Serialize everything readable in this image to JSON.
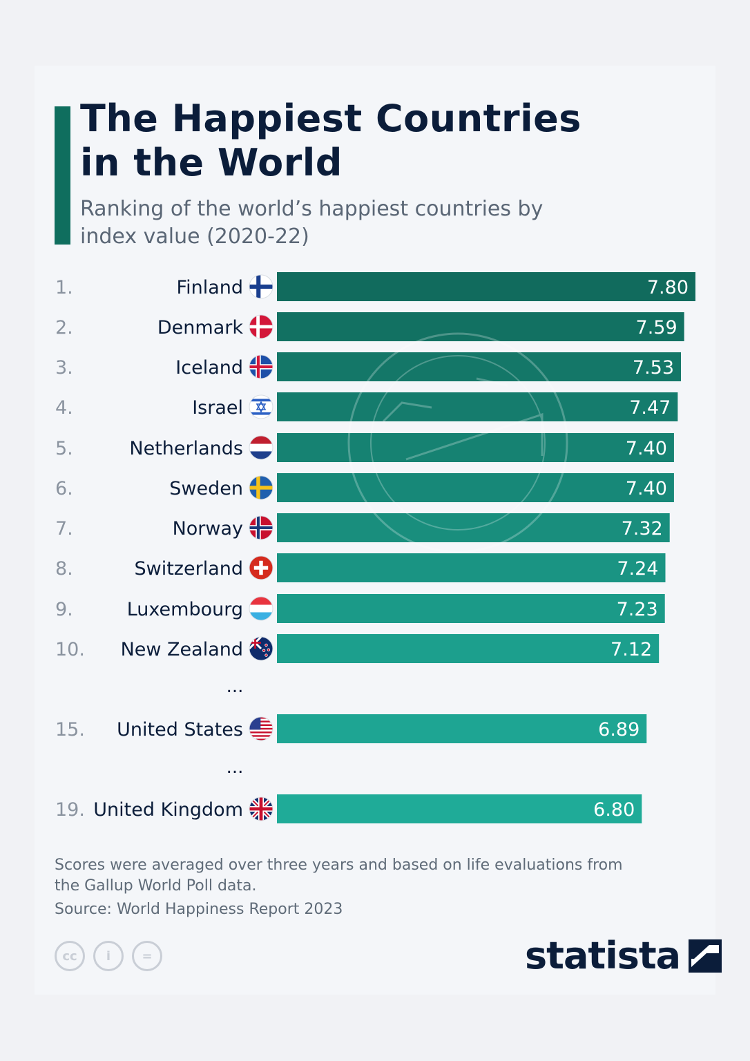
{
  "header": {
    "title": "The Happiest Countries in the World",
    "subtitle": "Ranking of the world’s happiest countries by index value (2020-22)"
  },
  "chart_data": {
    "type": "bar",
    "orientation": "horizontal",
    "title": "The Happiest Countries in the World",
    "subtitle": "Ranking of the world’s happiest countries by index value (2020-22)",
    "xlim": [
      0,
      7.8
    ],
    "rows": [
      {
        "rank": "1.",
        "country": "Finland",
        "value": 7.8,
        "value_label": "7.80",
        "flag": "finland-flag-icon"
      },
      {
        "rank": "2.",
        "country": "Denmark",
        "value": 7.59,
        "value_label": "7.59",
        "flag": "denmark-flag-icon"
      },
      {
        "rank": "3.",
        "country": "Iceland",
        "value": 7.53,
        "value_label": "7.53",
        "flag": "iceland-flag-icon"
      },
      {
        "rank": "4.",
        "country": "Israel",
        "value": 7.47,
        "value_label": "7.47",
        "flag": "israel-flag-icon"
      },
      {
        "rank": "5.",
        "country": "Netherlands",
        "value": 7.4,
        "value_label": "7.40",
        "flag": "netherlands-flag-icon"
      },
      {
        "rank": "6.",
        "country": "Sweden",
        "value": 7.4,
        "value_label": "7.40",
        "flag": "sweden-flag-icon"
      },
      {
        "rank": "7.",
        "country": "Norway",
        "value": 7.32,
        "value_label": "7.32",
        "flag": "norway-flag-icon"
      },
      {
        "rank": "8.",
        "country": "Switzerland",
        "value": 7.24,
        "value_label": "7.24",
        "flag": "switzerland-flag-icon"
      },
      {
        "rank": "9.",
        "country": "Luxembourg",
        "value": 7.23,
        "value_label": "7.23",
        "flag": "luxembourg-flag-icon"
      },
      {
        "rank": "10.",
        "country": "New Zealand",
        "value": 7.12,
        "value_label": "7.12",
        "flag": "new-zealand-flag-icon"
      },
      {
        "rank": "15.",
        "country": "United States",
        "value": 6.89,
        "value_label": "6.89",
        "flag": "united-states-flag-icon"
      },
      {
        "rank": "19.",
        "country": "United Kingdom",
        "value": 6.8,
        "value_label": "6.80",
        "flag": "united-kingdom-flag-icon"
      }
    ],
    "ellipsis_text": "...",
    "colors": {
      "top": "#116b5d",
      "bottom": "#1fab98"
    }
  },
  "footer": {
    "note": "Scores were averaged over three years and based on life evaluations from the Gallup World Poll data.",
    "source": "Source: World Happiness Report 2023",
    "license_icons": [
      "cc-icon",
      "attribution-icon",
      "no-derivatives-icon"
    ],
    "cc_glyphs": [
      "cc",
      "i",
      "="
    ],
    "logo": "statista"
  }
}
